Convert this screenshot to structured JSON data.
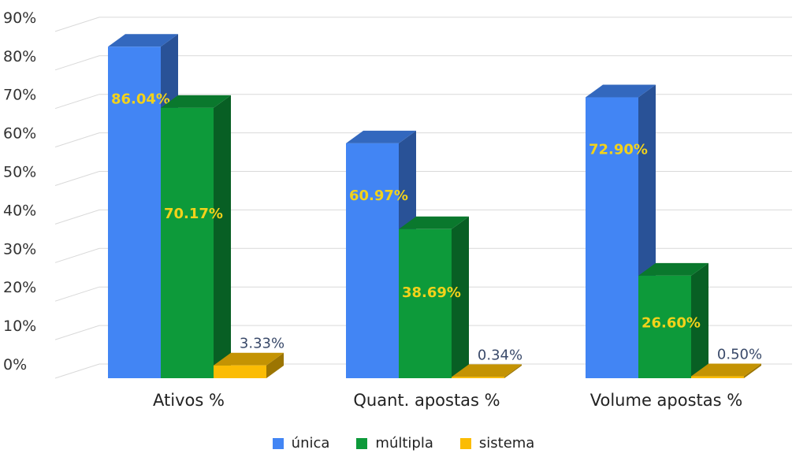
{
  "chart_data": {
    "type": "bar",
    "style": "3d-clustered",
    "categories": [
      "Ativos %",
      "Quant. apostas %",
      "Volume apostas %"
    ],
    "series": [
      {
        "name": "única",
        "color": "#4285f4",
        "values": [
          86.04,
          60.97,
          72.9
        ],
        "labels": [
          "86.04%",
          "60.97%",
          "72.90%"
        ]
      },
      {
        "name": "múltipla",
        "color": "#0d9a3a",
        "values": [
          70.17,
          38.69,
          26.6
        ],
        "labels": [
          "70.17%",
          "38.69%",
          "26.60%"
        ]
      },
      {
        "name": "sistema",
        "color": "#fbbc04",
        "values": [
          3.33,
          0.34,
          0.5
        ],
        "labels": [
          "3.33%",
          "0.34%",
          "0.50%"
        ]
      }
    ],
    "y_ticks": [
      "0%",
      "10%",
      "20%",
      "30%",
      "40%",
      "50%",
      "60%",
      "70%",
      "80%",
      "90%"
    ],
    "ylim": [
      0,
      90
    ],
    "grid": true,
    "legend_position": "bottom"
  }
}
